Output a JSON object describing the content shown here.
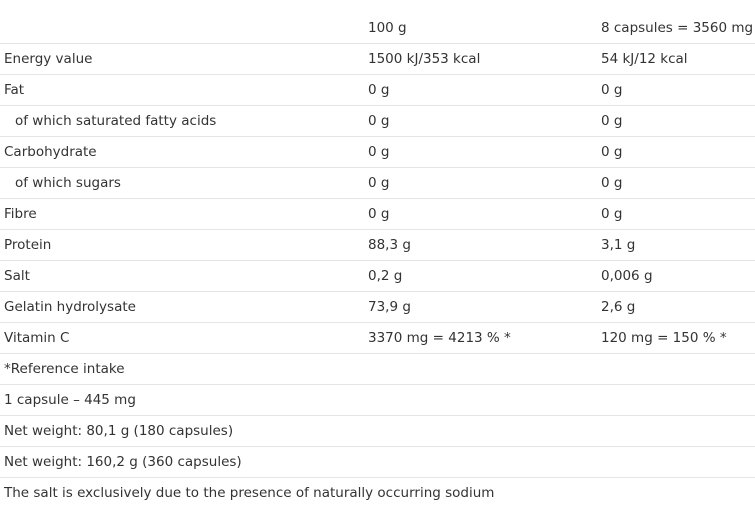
{
  "header": {
    "col1": "",
    "col2": "100 g",
    "col3": "8 capsules = 3560 mg"
  },
  "rows": [
    {
      "label": "Energy value",
      "per100": "1500 kJ/353 kcal",
      "perServing": "54 kJ/12 kcal"
    },
    {
      "label": "Fat",
      "per100": "0 g",
      "perServing": "0 g"
    },
    {
      "label": "of which saturated fatty acids",
      "per100": "0 g",
      "perServing": "0 g",
      "indent": true
    },
    {
      "label": "Carbohydrate",
      "per100": "0 g",
      "perServing": "0 g"
    },
    {
      "label": "of which sugars",
      "per100": "0 g",
      "perServing": "0 g",
      "indent": true
    },
    {
      "label": "Fibre",
      "per100": "0 g",
      "perServing": "0 g"
    },
    {
      "label": "Protein",
      "per100": "88,3 g",
      "perServing": "3,1 g"
    },
    {
      "label": "Salt",
      "per100": "0,2 g",
      "perServing": "0,006 g"
    },
    {
      "label": "Gelatin hydrolysate",
      "per100": "73,9 g",
      "perServing": "2,6 g"
    },
    {
      "label": "Vitamin C",
      "per100": "3370 mg = 4213 % *",
      "perServing": "120 mg = 150 % *"
    }
  ],
  "notes": [
    "*Reference intake",
    "1 capsule – 445 mg",
    "Net weight: 80,1 g (180 capsules)",
    "Net weight: 160,2 g (360 capsules)",
    "The salt is exclusively due to the presence of naturally occurring sodium"
  ]
}
